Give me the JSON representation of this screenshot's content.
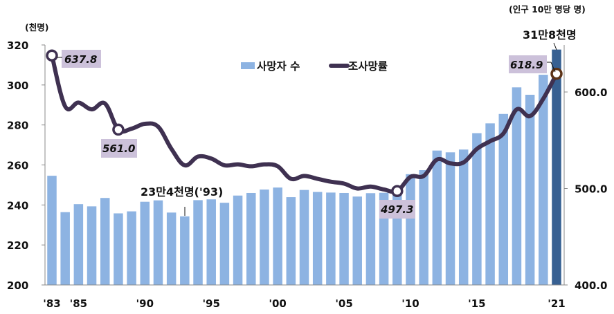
{
  "chart_data": {
    "type": "bar+line",
    "title": "",
    "categories": [
      1983,
      1984,
      1985,
      1986,
      1987,
      1988,
      1989,
      1990,
      1991,
      1992,
      1993,
      1994,
      1995,
      1996,
      1997,
      1998,
      1999,
      2000,
      2001,
      2002,
      2003,
      2004,
      2005,
      2006,
      2007,
      2008,
      2009,
      2010,
      2011,
      2012,
      2013,
      2014,
      2015,
      2016,
      2017,
      2018,
      2019,
      2020,
      2021
    ],
    "x_tick_labels": [
      "'83",
      "'85",
      "'90",
      "'95",
      "'00",
      "'05",
      "'10",
      "'15",
      "'21"
    ],
    "x_tick_years": [
      1983,
      1985,
      1990,
      1995,
      2000,
      2005,
      2010,
      2015,
      2021
    ],
    "series": [
      {
        "name": "사망자 수",
        "type": "bar",
        "axis": "left",
        "color": "#8DB3E2",
        "highlight_color": "#376092",
        "values": [
          254.6,
          236.4,
          240.4,
          239.3,
          243.5,
          235.8,
          236.8,
          241.6,
          242.3,
          236.2,
          234.3,
          242.4,
          242.8,
          241.1,
          244.7,
          246.0,
          247.7,
          248.7,
          243.9,
          247.5,
          246.5,
          246.2,
          246.0,
          244.2,
          245.9,
          246.1,
          246.9,
          255.4,
          257.4,
          267.2,
          266.3,
          267.7,
          275.9,
          280.8,
          285.5,
          298.8,
          295.1,
          305.1,
          317.7
        ]
      },
      {
        "name": "조사망률",
        "type": "line",
        "axis": "right",
        "color": "#3F3151",
        "values": [
          637.8,
          585.0,
          589.0,
          582.0,
          588.0,
          561.0,
          562.0,
          567.0,
          564.0,
          541.0,
          524.0,
          533.0,
          531.0,
          524.0,
          525.0,
          523.0,
          525.0,
          523.0,
          510.0,
          513.0,
          510.0,
          507.0,
          505.0,
          500.0,
          502.0,
          499.0,
          497.3,
          512.0,
          513.0,
          530.0,
          526.0,
          527.0,
          541.0,
          549.0,
          557.0,
          582.0,
          575.0,
          593.0,
          618.9
        ]
      }
    ],
    "left_axis": {
      "label": "(천명)",
      "ylim": [
        200,
        320
      ],
      "ticks": [
        200,
        220,
        240,
        260,
        280,
        300,
        320
      ]
    },
    "right_axis": {
      "label": "(인구 10만 명당 명)",
      "ylim": [
        400,
        650
      ],
      "ticks": [
        "400.0",
        "500.0",
        "600.0"
      ]
    },
    "legend": {
      "position": "top-center",
      "entries": [
        "사망자 수",
        "조사망률"
      ]
    },
    "grid": false,
    "annotations": [
      {
        "text": "637.8",
        "year": 1983,
        "series": "조사망률"
      },
      {
        "text": "561.0",
        "year": 1988,
        "series": "조사망률"
      },
      {
        "text": "497.3",
        "year": 2009,
        "series": "조사망률"
      },
      {
        "text": "618.9",
        "year": 2021,
        "series": "조사망률"
      },
      {
        "text": "23만4천명('93)",
        "year": 1993,
        "series": "사망자 수"
      },
      {
        "text": "31만8천명",
        "year": 2021,
        "series": "사망자 수"
      }
    ]
  },
  "labels": {
    "left_unit": "(천명)",
    "right_unit": "(인구 10만 명당 명)",
    "legend_bar": "사망자 수",
    "legend_line": "조사망률",
    "ann_1983": "637.8",
    "ann_1988": "561.0",
    "ann_2009": "497.3",
    "ann_2021": "618.9",
    "ann_1993_deaths": "23만4천명('93)",
    "ann_2021_deaths": "31만8천명"
  }
}
